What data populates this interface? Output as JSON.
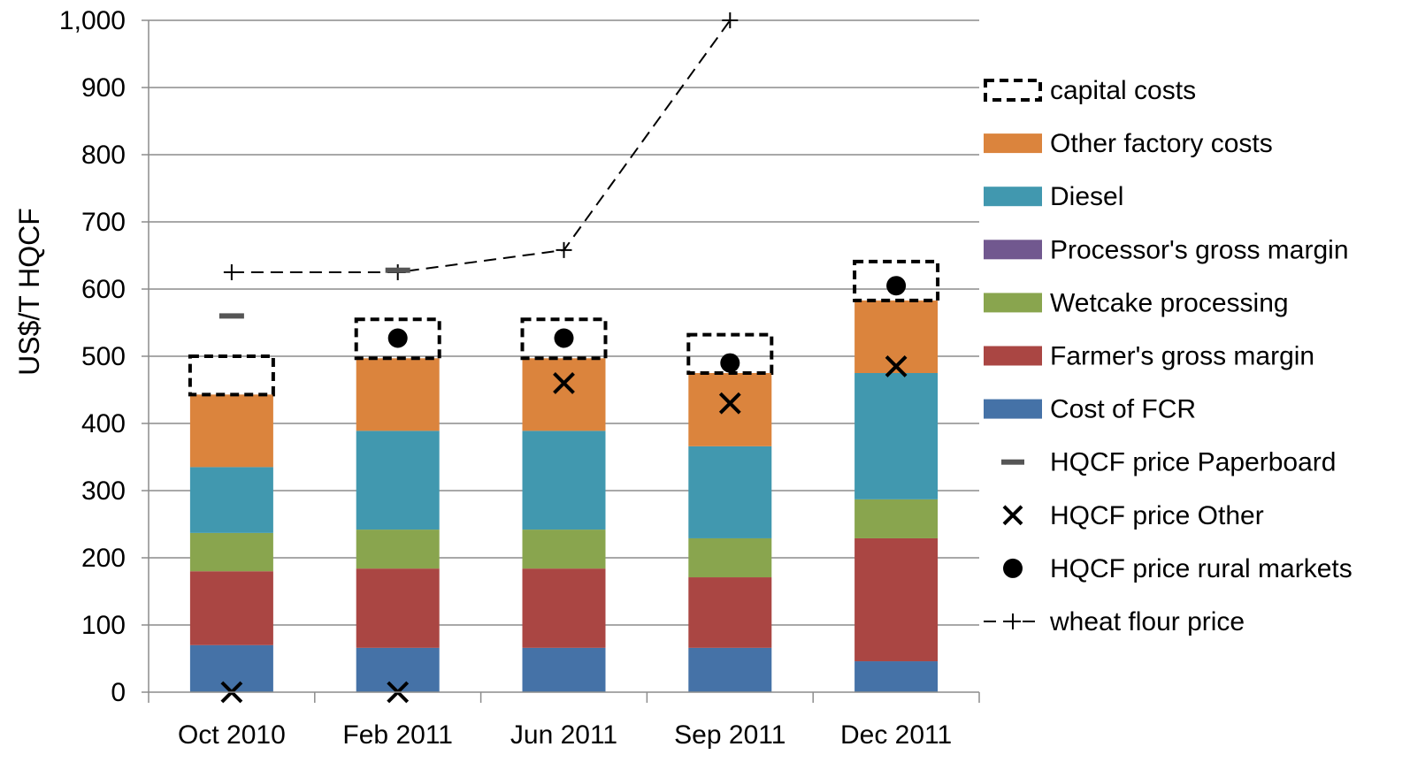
{
  "chart_data": {
    "type": "bar",
    "stacked": true,
    "title": "",
    "xlabel": "",
    "ylabel": "US$/T HQCF",
    "ylim": [
      0,
      1000
    ],
    "yticks": [
      0,
      100,
      200,
      300,
      400,
      500,
      600,
      700,
      800,
      900,
      1000
    ],
    "ytick_labels": [
      "0",
      "100",
      "200",
      "300",
      "400",
      "500",
      "600",
      "700",
      "800",
      "900",
      "1,000"
    ],
    "grid": "horizontal",
    "legend_position": "right",
    "categories": [
      "Oct 2010",
      "Feb 2011",
      "Jun 2011",
      "Sep 2011",
      "Dec 2011"
    ],
    "series": [
      {
        "name": "Cost of FCR",
        "kind": "bar",
        "color": "#4572A7",
        "values": [
          70,
          66,
          66,
          66,
          46
        ]
      },
      {
        "name": "Farmer's gross margin",
        "kind": "bar",
        "color": "#AA4643",
        "values": [
          110,
          118,
          118,
          105,
          183
        ]
      },
      {
        "name": "Wetcake processing",
        "kind": "bar",
        "color": "#89A54E",
        "values": [
          57,
          58,
          58,
          58,
          58
        ]
      },
      {
        "name": "Processor's gross margin",
        "kind": "bar",
        "color": "#71588F",
        "values": [
          0,
          0,
          0,
          0,
          0
        ]
      },
      {
        "name": "Diesel",
        "kind": "bar",
        "color": "#4198AF",
        "values": [
          98,
          147,
          147,
          137,
          188
        ]
      },
      {
        "name": "Other factory costs",
        "kind": "bar",
        "color": "#DB843D",
        "values": [
          108,
          108,
          108,
          109,
          108
        ]
      },
      {
        "name": "capital costs",
        "kind": "dashed-box",
        "color": "#000000",
        "values": [
          57,
          58,
          58,
          57,
          58
        ]
      },
      {
        "name": "HQCF price Paperboard",
        "kind": "dash-marker",
        "color": "#555555",
        "values": [
          560,
          628,
          null,
          null,
          null
        ]
      },
      {
        "name": "HQCF price Other",
        "kind": "x-marker",
        "color": "#000000",
        "values": [
          0,
          0,
          460,
          430,
          485
        ]
      },
      {
        "name": "HQCF price rural markets",
        "kind": "dot-marker",
        "color": "#000000",
        "values": [
          null,
          527,
          527,
          490,
          605
        ]
      },
      {
        "name": "wheat flour price",
        "kind": "dashed-line-plus",
        "color": "#000000",
        "values": [
          625,
          625,
          658,
          1000,
          null
        ]
      }
    ],
    "legend_order": [
      "capital costs",
      "Other factory costs",
      "Diesel",
      "Processor's gross margin",
      "Wetcake processing",
      "Farmer's gross margin",
      "Cost of FCR",
      "HQCF price Paperboard",
      "HQCF price Other",
      "HQCF price rural markets",
      "wheat flour price"
    ]
  }
}
